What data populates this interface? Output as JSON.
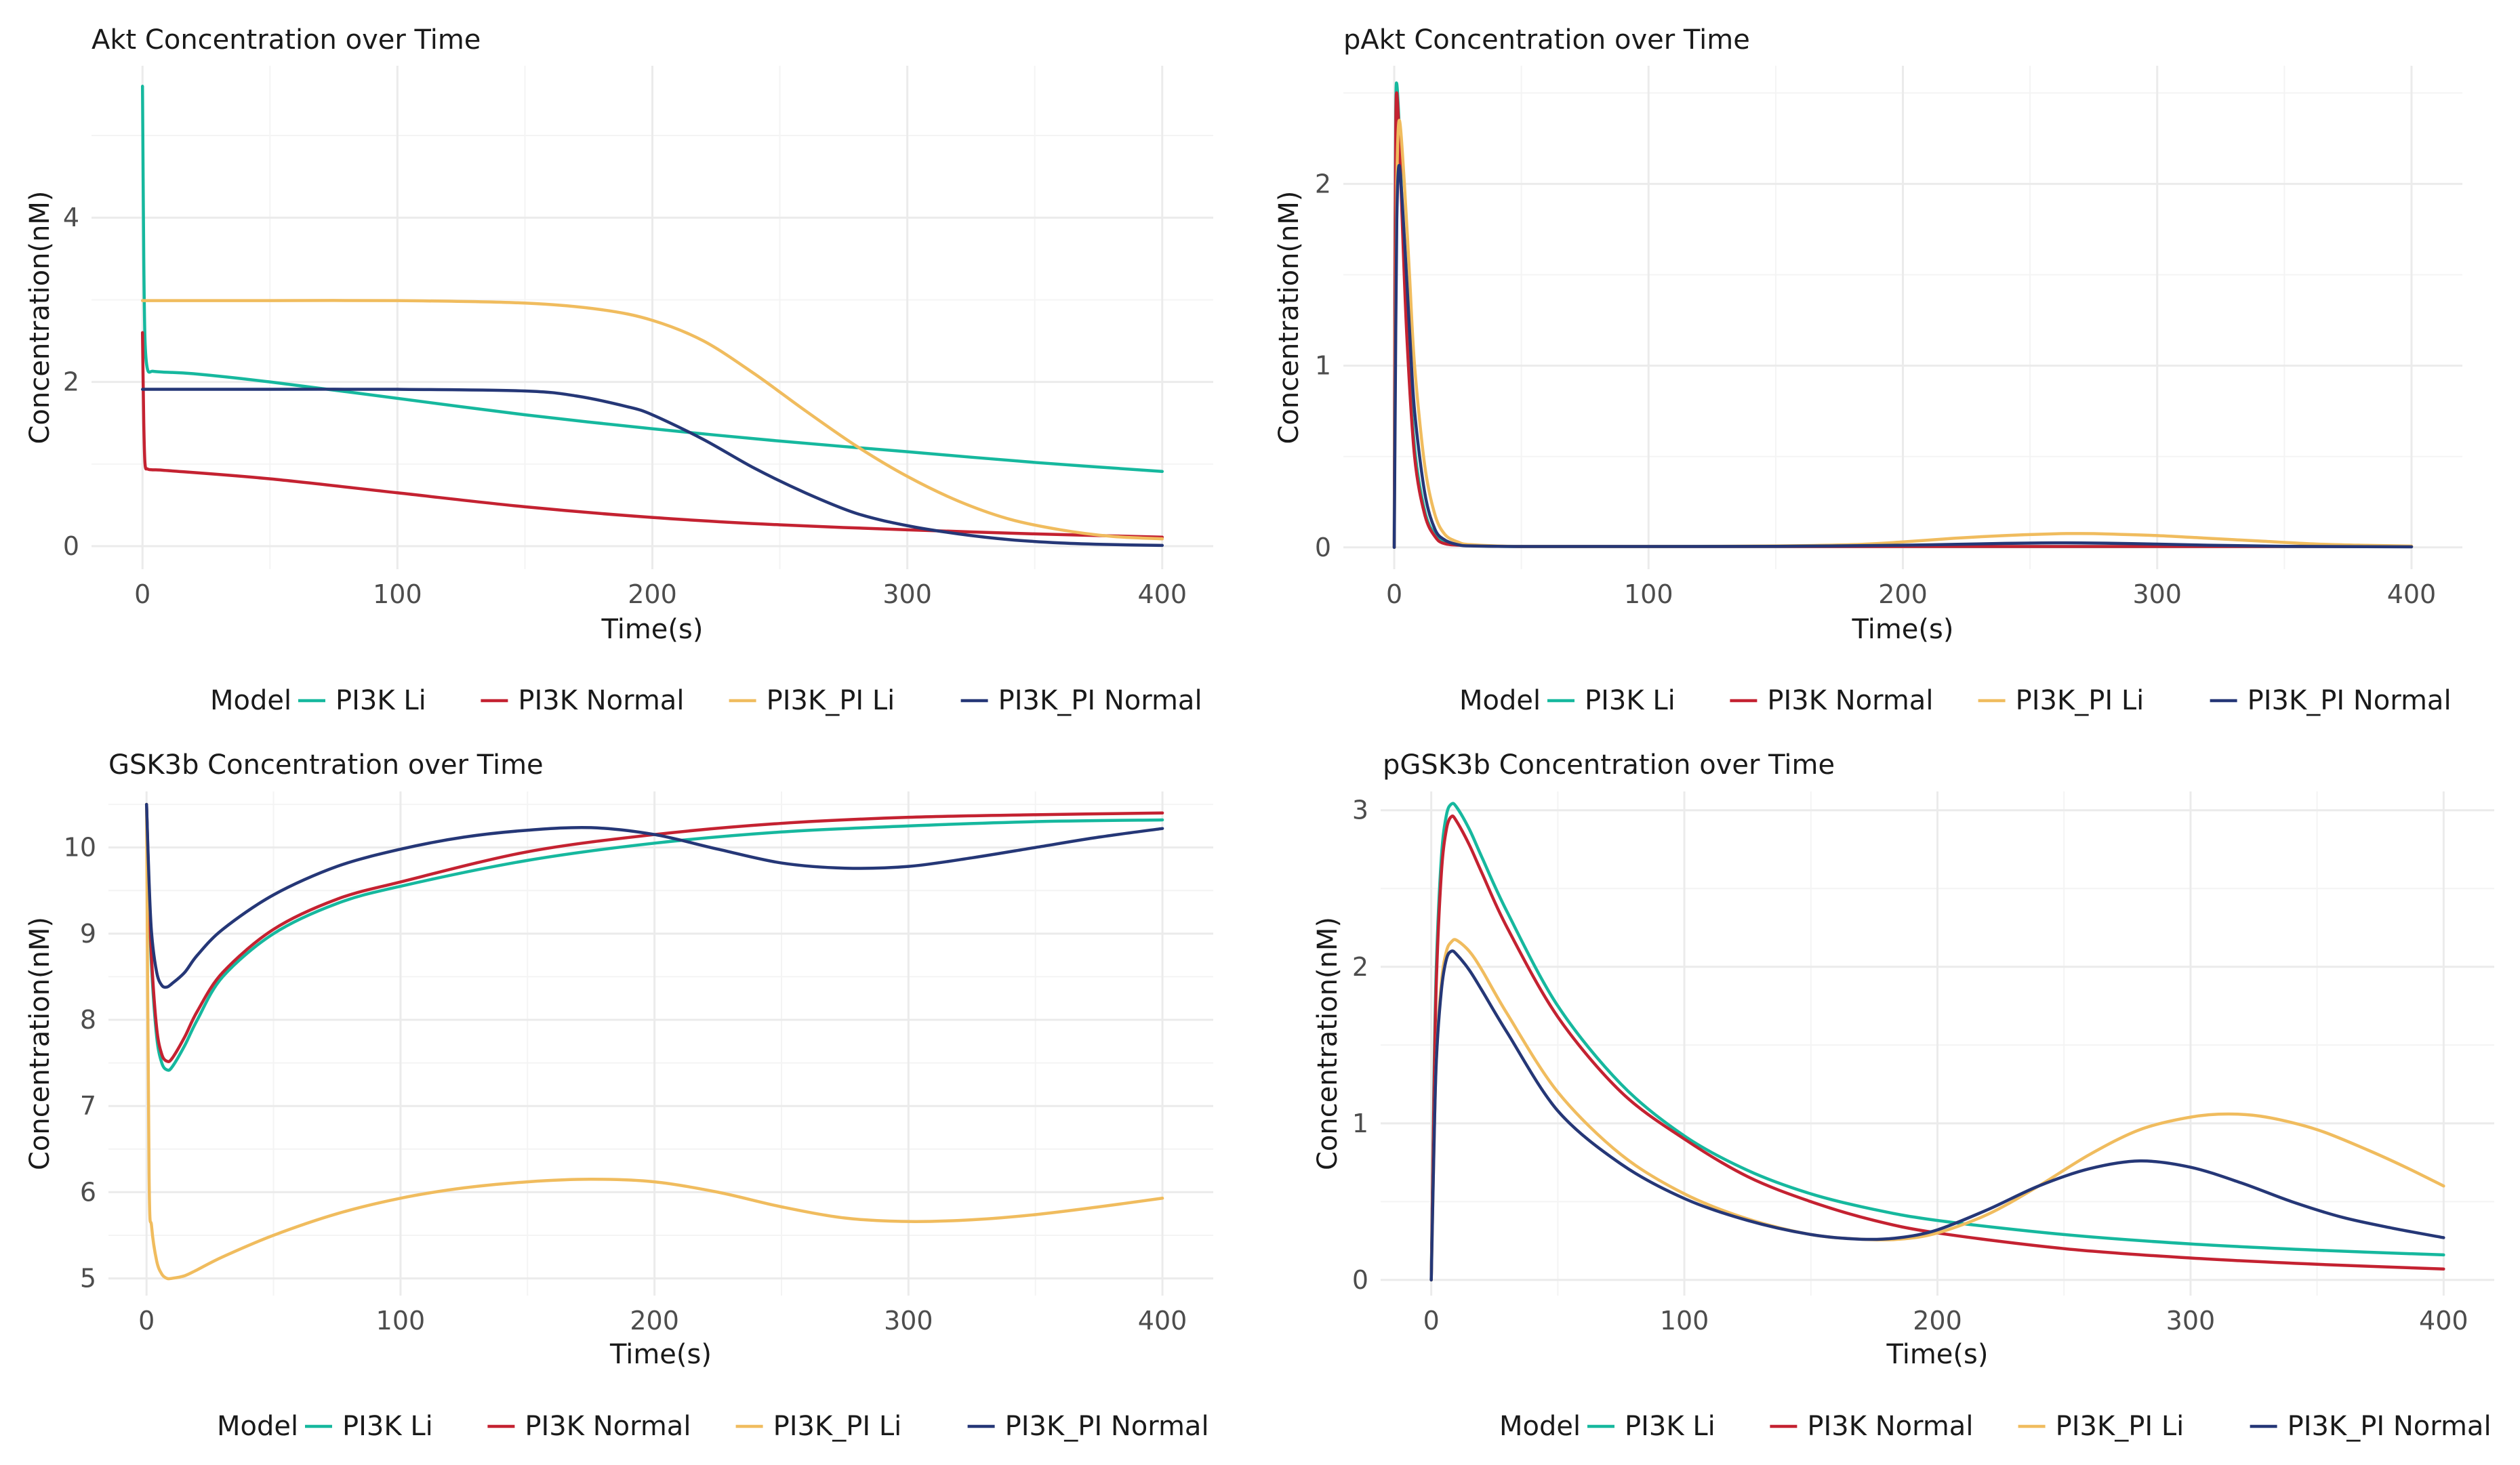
{
  "legend": {
    "title": "Model",
    "entries": [
      {
        "name": "PI3K Li",
        "color": "#16B89E"
      },
      {
        "name": "PI3K Normal",
        "color": "#C42231"
      },
      {
        "name": "PI3K_PI Li",
        "color": "#F0BC5E"
      },
      {
        "name": "PI3K_PI Normal",
        "color": "#253777"
      }
    ]
  },
  "chart_data": [
    {
      "type": "line",
      "title": "Akt Concentration over Time",
      "xlabel": "Time(s)",
      "ylabel": "Concentration(nM)",
      "xlim": [
        -20,
        420
      ],
      "ylim": [
        -0.28,
        5.85
      ],
      "xticks": [
        0,
        100,
        200,
        300,
        400
      ],
      "yticks": [
        0,
        2,
        4
      ],
      "xtick_labels": [
        "0",
        "100",
        "200",
        "300",
        "400"
      ],
      "ytick_labels": [
        "0",
        "2",
        "4"
      ],
      "series": [
        {
          "name": "PI3K Li",
          "x": [
            0,
            0.5,
            1,
            2,
            4,
            8,
            20,
            50,
            100,
            150,
            200,
            250,
            300,
            350,
            400
          ],
          "y": [
            5.6,
            3.5,
            2.5,
            2.15,
            2.13,
            2.12,
            2.1,
            2.0,
            1.8,
            1.6,
            1.43,
            1.28,
            1.15,
            1.02,
            0.91
          ]
        },
        {
          "name": "PI3K Normal",
          "x": [
            0,
            0.5,
            1,
            2,
            4,
            10,
            50,
            100,
            150,
            200,
            250,
            300,
            350,
            400
          ],
          "y": [
            2.6,
            1.5,
            1.0,
            0.94,
            0.93,
            0.92,
            0.82,
            0.65,
            0.48,
            0.35,
            0.26,
            0.2,
            0.15,
            0.11
          ]
        },
        {
          "name": "PI3K_PI Li",
          "x": [
            0,
            50,
            100,
            150,
            180,
            200,
            220,
            240,
            260,
            280,
            300,
            320,
            340,
            360,
            380,
            400
          ],
          "y": [
            2.99,
            2.99,
            2.99,
            2.96,
            2.88,
            2.75,
            2.5,
            2.1,
            1.65,
            1.22,
            0.85,
            0.55,
            0.33,
            0.2,
            0.12,
            0.09
          ]
        },
        {
          "name": "PI3K_PI Normal",
          "x": [
            0,
            50,
            100,
            150,
            170,
            190,
            200,
            220,
            240,
            260,
            280,
            300,
            320,
            340,
            360,
            380,
            400
          ],
          "y": [
            1.91,
            1.91,
            1.91,
            1.89,
            1.83,
            1.7,
            1.6,
            1.3,
            0.95,
            0.65,
            0.4,
            0.25,
            0.15,
            0.08,
            0.04,
            0.02,
            0.01
          ]
        }
      ]
    },
    {
      "type": "line",
      "title": "pAkt Concentration over Time",
      "xlabel": "Time(s)",
      "ylabel": "Concentration(nM)",
      "xlim": [
        -20,
        420
      ],
      "ylim": [
        -0.12,
        2.65
      ],
      "xticks": [
        0,
        100,
        200,
        300,
        400
      ],
      "yticks": [
        0,
        1,
        2
      ],
      "xtick_labels": [
        "0",
        "100",
        "200",
        "300",
        "400"
      ],
      "ytick_labels": [
        "0",
        "1",
        "2"
      ],
      "series": [
        {
          "name": "PI3K Li",
          "x": [
            0,
            0.3,
            0.6,
            1,
            2,
            3,
            5,
            8,
            12,
            16,
            20,
            30,
            50,
            100,
            150,
            200,
            250,
            300,
            350,
            400
          ],
          "y": [
            0,
            1.6,
            2.4,
            2.55,
            2.3,
            1.9,
            1.2,
            0.55,
            0.2,
            0.07,
            0.03,
            0.01,
            0.005,
            0.005,
            0.005,
            0.005,
            0.005,
            0.005,
            0.005,
            0.005
          ]
        },
        {
          "name": "PI3K Normal",
          "x": [
            0,
            0.3,
            0.6,
            1,
            2,
            3,
            5,
            8,
            12,
            16,
            20,
            30,
            50,
            100,
            200,
            300,
            400
          ],
          "y": [
            0,
            1.5,
            2.3,
            2.5,
            2.25,
            1.85,
            1.15,
            0.5,
            0.18,
            0.06,
            0.02,
            0.01,
            0.005,
            0.005,
            0.005,
            0.005,
            0.005
          ]
        },
        {
          "name": "PI3K_PI Li",
          "x": [
            0,
            0.5,
            1,
            2,
            4,
            6,
            8,
            12,
            16,
            20,
            25,
            30,
            50,
            100,
            150,
            180,
            200,
            220,
            240,
            260,
            270,
            280,
            300,
            320,
            340,
            360,
            380,
            400
          ],
          "y": [
            0,
            1.2,
            2.0,
            2.35,
            2.0,
            1.5,
            1.0,
            0.45,
            0.18,
            0.07,
            0.03,
            0.015,
            0.005,
            0.005,
            0.008,
            0.015,
            0.03,
            0.05,
            0.065,
            0.075,
            0.076,
            0.074,
            0.065,
            0.05,
            0.035,
            0.02,
            0.012,
            0.007
          ]
        },
        {
          "name": "PI3K_PI Normal",
          "x": [
            0,
            0.5,
            1,
            2,
            4,
            6,
            8,
            12,
            16,
            20,
            25,
            30,
            50,
            100,
            150,
            200,
            240,
            260,
            280,
            300,
            320,
            350,
            400
          ],
          "y": [
            0,
            1.0,
            1.8,
            2.1,
            1.7,
            1.2,
            0.75,
            0.3,
            0.1,
            0.04,
            0.015,
            0.008,
            0.005,
            0.005,
            0.006,
            0.012,
            0.022,
            0.025,
            0.023,
            0.018,
            0.012,
            0.006,
            0.003
          ]
        }
      ]
    },
    {
      "type": "line",
      "title": "GSK3b Concentration over Time",
      "xlabel": "Time(s)",
      "ylabel": "Concentration(nM)",
      "xlim": [
        -15,
        420
      ],
      "ylim": [
        4.8,
        10.65
      ],
      "xticks": [
        0,
        100,
        200,
        300,
        400
      ],
      "yticks": [
        5,
        6,
        7,
        8,
        9,
        10
      ],
      "xtick_labels": [
        "0",
        "100",
        "200",
        "300",
        "400"
      ],
      "ytick_labels": [
        "5",
        "6",
        "7",
        "8",
        "9",
        "10"
      ],
      "series": [
        {
          "name": "PI3K Li",
          "x": [
            0,
            1,
            2,
            4,
            6,
            8,
            10,
            15,
            20,
            30,
            50,
            75,
            100,
            150,
            200,
            250,
            300,
            350,
            400
          ],
          "y": [
            10.5,
            9.4,
            8.6,
            7.8,
            7.5,
            7.42,
            7.45,
            7.7,
            8.0,
            8.5,
            9.0,
            9.35,
            9.55,
            9.85,
            10.05,
            10.18,
            10.25,
            10.3,
            10.32
          ]
        },
        {
          "name": "PI3K Normal",
          "x": [
            0,
            1,
            2,
            4,
            6,
            8,
            10,
            15,
            20,
            30,
            50,
            75,
            100,
            150,
            200,
            250,
            300,
            350,
            400
          ],
          "y": [
            10.5,
            9.5,
            8.7,
            7.9,
            7.6,
            7.52,
            7.55,
            7.8,
            8.1,
            8.55,
            9.05,
            9.4,
            9.6,
            9.95,
            10.15,
            10.28,
            10.35,
            10.38,
            10.4
          ]
        },
        {
          "name": "PI3K_PI Li",
          "x": [
            0,
            1,
            2,
            4,
            6,
            8,
            10,
            15,
            20,
            30,
            50,
            75,
            100,
            125,
            150,
            175,
            200,
            225,
            250,
            275,
            300,
            325,
            350,
            375,
            400
          ],
          "y": [
            10.5,
            6.2,
            5.6,
            5.2,
            5.05,
            5.0,
            5.0,
            5.03,
            5.1,
            5.25,
            5.5,
            5.75,
            5.93,
            6.05,
            6.12,
            6.15,
            6.12,
            6.0,
            5.83,
            5.7,
            5.66,
            5.68,
            5.74,
            5.83,
            5.93
          ]
        },
        {
          "name": "PI3K_PI Normal",
          "x": [
            0,
            1,
            2,
            4,
            6,
            8,
            10,
            15,
            20,
            30,
            50,
            75,
            100,
            125,
            150,
            175,
            200,
            225,
            250,
            275,
            300,
            325,
            350,
            375,
            400
          ],
          "y": [
            10.5,
            9.6,
            9.0,
            8.55,
            8.4,
            8.38,
            8.42,
            8.55,
            8.75,
            9.05,
            9.45,
            9.78,
            9.98,
            10.12,
            10.2,
            10.23,
            10.15,
            9.98,
            9.82,
            9.76,
            9.78,
            9.88,
            10.0,
            10.12,
            10.22
          ]
        }
      ]
    },
    {
      "type": "line",
      "title": "pGSK3b Concentration over Time",
      "xlabel": "Time(s)",
      "ylabel": "Concentration(nM)",
      "xlim": [
        -20,
        420
      ],
      "ylim": [
        -0.1,
        3.12
      ],
      "xticks": [
        0,
        100,
        200,
        300,
        400
      ],
      "yticks": [
        0,
        1,
        2,
        3
      ],
      "xtick_labels": [
        "0",
        "100",
        "200",
        "300",
        "400"
      ],
      "ytick_labels": [
        "0",
        "1",
        "2",
        "3"
      ],
      "series": [
        {
          "name": "PI3K Li",
          "x": [
            0,
            1,
            2,
            4,
            6,
            8,
            10,
            15,
            20,
            30,
            50,
            75,
            100,
            125,
            150,
            175,
            200,
            250,
            300,
            350,
            400
          ],
          "y": [
            0,
            1.2,
            2.0,
            2.7,
            2.97,
            3.04,
            3.02,
            2.88,
            2.7,
            2.35,
            1.75,
            1.25,
            0.92,
            0.7,
            0.55,
            0.45,
            0.38,
            0.29,
            0.23,
            0.19,
            0.16
          ]
        },
        {
          "name": "PI3K Normal",
          "x": [
            0,
            1,
            2,
            4,
            6,
            8,
            10,
            15,
            20,
            30,
            50,
            75,
            100,
            125,
            150,
            175,
            200,
            250,
            300,
            350,
            400
          ],
          "y": [
            0,
            1.1,
            1.9,
            2.6,
            2.88,
            2.96,
            2.93,
            2.78,
            2.6,
            2.25,
            1.68,
            1.2,
            0.9,
            0.66,
            0.5,
            0.38,
            0.3,
            0.2,
            0.14,
            0.1,
            0.07
          ]
        },
        {
          "name": "PI3K_PI Li",
          "x": [
            0,
            1,
            2,
            4,
            6,
            8,
            10,
            15,
            20,
            30,
            50,
            75,
            100,
            125,
            150,
            170,
            185,
            200,
            220,
            240,
            260,
            280,
            300,
            315,
            330,
            350,
            370,
            385,
            400
          ],
          "y": [
            0,
            0.8,
            1.4,
            1.9,
            2.1,
            2.16,
            2.17,
            2.1,
            1.98,
            1.7,
            1.2,
            0.8,
            0.55,
            0.39,
            0.29,
            0.26,
            0.26,
            0.3,
            0.42,
            0.6,
            0.8,
            0.96,
            1.04,
            1.06,
            1.04,
            0.96,
            0.83,
            0.72,
            0.6
          ]
        },
        {
          "name": "PI3K_PI Normal",
          "x": [
            0,
            1,
            2,
            4,
            6,
            8,
            10,
            15,
            20,
            30,
            50,
            75,
            100,
            125,
            150,
            170,
            185,
            200,
            220,
            240,
            260,
            280,
            300,
            320,
            340,
            360,
            380,
            400
          ],
          "y": [
            0,
            0.8,
            1.4,
            1.85,
            2.05,
            2.1,
            2.08,
            1.98,
            1.85,
            1.58,
            1.08,
            0.74,
            0.52,
            0.38,
            0.29,
            0.26,
            0.27,
            0.32,
            0.45,
            0.6,
            0.71,
            0.76,
            0.72,
            0.62,
            0.5,
            0.4,
            0.33,
            0.27
          ]
        }
      ]
    }
  ]
}
